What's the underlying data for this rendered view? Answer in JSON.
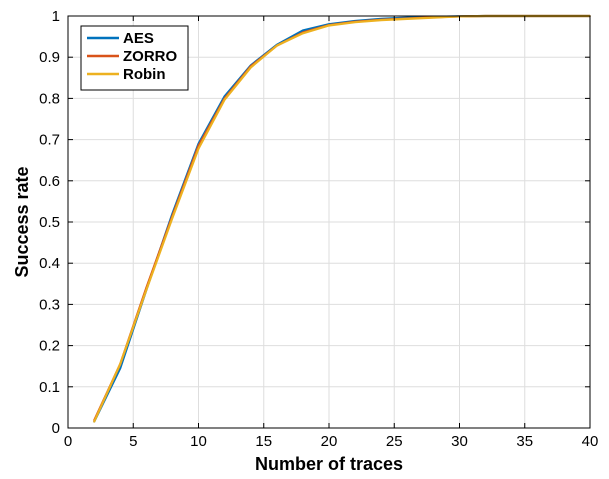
{
  "chart_data": {
    "type": "line",
    "title": "",
    "xlabel": "Number of traces",
    "ylabel": "Success rate",
    "xlim": [
      0,
      40
    ],
    "ylim": [
      0,
      1
    ],
    "xticks": [
      "0",
      "5",
      "10",
      "15",
      "20",
      "25",
      "30",
      "35",
      "40"
    ],
    "yticks": [
      "0",
      "0.1",
      "0.2",
      "0.3",
      "0.4",
      "0.5",
      "0.6",
      "0.7",
      "0.8",
      "0.9",
      "1"
    ],
    "grid": true,
    "legend_position": "top-left",
    "x": [
      2,
      4,
      6,
      8,
      10,
      12,
      14,
      16,
      18,
      20,
      22,
      24,
      26,
      28,
      30,
      32,
      34,
      36,
      38,
      40
    ],
    "series": [
      {
        "name": "AES",
        "color": "#0072BD",
        "values": [
          0.015,
          0.145,
          0.335,
          0.52,
          0.69,
          0.805,
          0.88,
          0.93,
          0.965,
          0.98,
          0.988,
          0.993,
          0.996,
          0.998,
          0.999,
          1.0,
          1.0,
          1.0,
          1.0,
          1.0
        ]
      },
      {
        "name": "ZORRO",
        "color": "#D95319",
        "values": [
          0.018,
          0.155,
          0.34,
          0.515,
          0.685,
          0.8,
          0.878,
          0.928,
          0.96,
          0.978,
          0.986,
          0.991,
          0.994,
          0.997,
          0.999,
          1.0,
          1.0,
          1.0,
          1.0,
          1.0
        ]
      },
      {
        "name": "Robin",
        "color": "#EDB120",
        "values": [
          0.015,
          0.155,
          0.335,
          0.51,
          0.678,
          0.797,
          0.875,
          0.928,
          0.958,
          0.977,
          0.985,
          0.99,
          0.993,
          0.996,
          0.999,
          1.0,
          1.0,
          1.0,
          1.0,
          1.0
        ]
      }
    ]
  }
}
